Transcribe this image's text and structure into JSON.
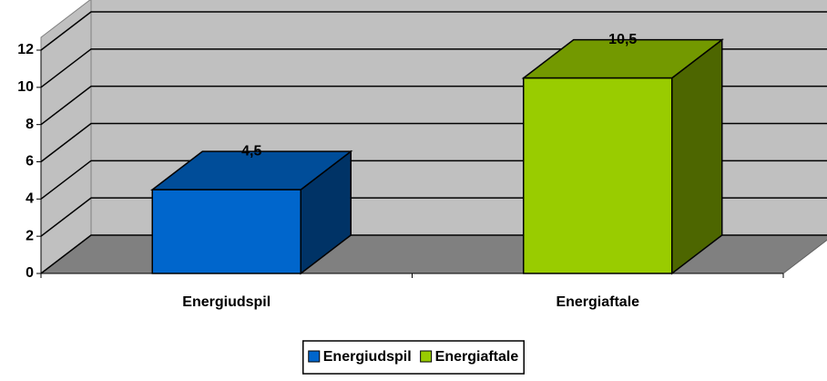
{
  "chart_data": {
    "type": "bar3d",
    "categories": [
      "Energiudspil",
      "Energiaftale"
    ],
    "series": [
      {
        "name": "Energiudspil",
        "color": "#0066cc",
        "values": [
          4.5,
          null
        ],
        "value_labels": [
          "4,5",
          null
        ]
      },
      {
        "name": "Energiaftale",
        "color": "#99cc00",
        "values": [
          null,
          10.5
        ],
        "value_labels": [
          null,
          "10,5"
        ]
      }
    ],
    "ylim": [
      0,
      12
    ],
    "yticks": [
      0,
      2,
      4,
      6,
      8,
      10,
      12
    ],
    "grid": true,
    "legend": "bottom"
  }
}
